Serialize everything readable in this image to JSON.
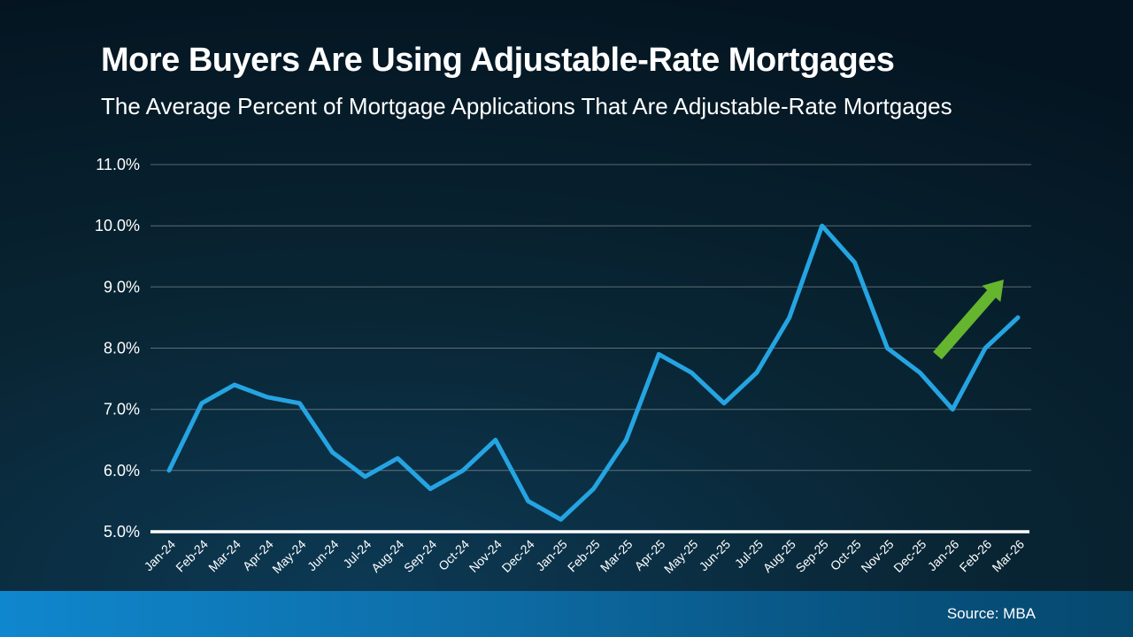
{
  "header": {
    "title": "More Buyers Are Using Adjustable-Rate Mortgages",
    "subtitle": "The Average Percent of Mortgage Applications That Are Adjustable-Rate Mortgages"
  },
  "footer": {
    "source_label": "Source: MBA"
  },
  "colors": {
    "background_dark": "#041521",
    "background_glow": "#0d3954",
    "title_text": "#ffffff",
    "line": "#25a4e2",
    "arrow": "#65b52f",
    "gridline": "rgba(195,200,195,0.45)",
    "axis_line": "#ffffff",
    "footer_left": "#0f87ce",
    "footer_right": "#06496f",
    "footer_text": "#ffffff"
  },
  "chart_data": {
    "type": "line",
    "title": "More Buyers Are Using Adjustable-Rate Mortgages",
    "subtitle": "The Average Percent of Mortgage Applications That Are Adjustable-Rate Mortgages",
    "x": [
      "Jan-24",
      "Feb-24",
      "Mar-24",
      "Apr-24",
      "May-24",
      "Jun-24",
      "Jul-24",
      "Aug-24",
      "Sep-24",
      "Oct-24",
      "Nov-24",
      "Dec-24",
      "Jan-25",
      "Feb-25",
      "Mar-25",
      "Apr-25",
      "May-25",
      "Jun-25",
      "Jul-25",
      "Aug-25",
      "Sep-25",
      "Oct-25",
      "Nov-25",
      "Dec-25",
      "Jan-26",
      "Feb-26",
      "Mar-26"
    ],
    "values": [
      6.0,
      7.1,
      7.4,
      7.2,
      7.1,
      6.3,
      5.9,
      6.2,
      5.7,
      6.0,
      6.5,
      5.5,
      5.2,
      5.7,
      6.5,
      7.9,
      7.6,
      7.1,
      7.6,
      8.5,
      10.0,
      9.4,
      8.0,
      7.6,
      7.0,
      8.0,
      8.5
    ],
    "xlabel": "",
    "ylabel": "",
    "ylim": [
      5.0,
      11.0
    ],
    "yticks": [
      5.0,
      6.0,
      7.0,
      8.0,
      9.0,
      10.0,
      11.0
    ],
    "ytick_labels": [
      "5.0%",
      "6.0%",
      "7.0%",
      "8.0%",
      "9.0%",
      "10.0%",
      "11.0%"
    ],
    "grid": true,
    "legend": "none",
    "line_color": "#25a4e2",
    "annotations": [
      {
        "type": "arrow",
        "meaning": "upward-trend",
        "color": "#65b52f",
        "location": "above the Jan-26 to Mar-26 segment, pointing up-right"
      }
    ],
    "source": "Source: MBA"
  }
}
